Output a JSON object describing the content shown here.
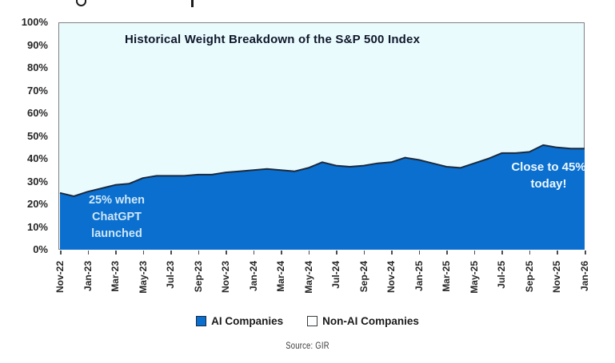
{
  "chart_data": {
    "type": "area",
    "title": "Historical Weight Breakdown of the S&P 500 Index",
    "stacked_to_100": true,
    "grid": false,
    "legend_position": "bottom",
    "ylim": [
      0,
      100
    ],
    "y_ticks": [
      "100%",
      "90%",
      "80%",
      "70%",
      "60%",
      "50%",
      "40%",
      "30%",
      "20%",
      "10%",
      "0%"
    ],
    "x_tick_labels": [
      "Nov-22",
      "Jan-23",
      "Mar-23",
      "May-23",
      "Jul-23",
      "Sep-23",
      "Nov-23",
      "Jan-24",
      "Mar-24",
      "May-24",
      "Jul-24",
      "Sep-24",
      "Nov-24",
      "Jan-25",
      "Mar-25",
      "May-25",
      "Jul-25",
      "Sep-25",
      "Nov-25",
      "Jan-26"
    ],
    "x": [
      "Nov-22",
      "Dec-22",
      "Jan-23",
      "Feb-23",
      "Mar-23",
      "Apr-23",
      "May-23",
      "Jun-23",
      "Jul-23",
      "Aug-23",
      "Sep-23",
      "Oct-23",
      "Nov-23",
      "Dec-23",
      "Jan-24",
      "Feb-24",
      "Mar-24",
      "Apr-24",
      "May-24",
      "Jun-24",
      "Jul-24",
      "Aug-24",
      "Sep-24",
      "Oct-24",
      "Nov-24",
      "Dec-24",
      "Jan-25",
      "Feb-25",
      "Mar-25",
      "Apr-25",
      "May-25",
      "Jun-25",
      "Jul-25",
      "Aug-25",
      "Sep-25",
      "Oct-25",
      "Nov-25",
      "Dec-25",
      "Jan-26"
    ],
    "series": [
      {
        "name": "AI Companies",
        "unit": "% of S&P 500 weight",
        "values": [
          25,
          23.5,
          25.5,
          27,
          28.5,
          29,
          31.5,
          32.5,
          32.5,
          32.5,
          33,
          33,
          34,
          34.5,
          35,
          35.5,
          35,
          34.5,
          36,
          38.5,
          37,
          36.5,
          37,
          38,
          38.5,
          40.5,
          39.5,
          38,
          36.5,
          36,
          38,
          40,
          42.5,
          42.5,
          43,
          46,
          45,
          44.5,
          44.5
        ]
      },
      {
        "name": "Non-AI Companies",
        "values": "complement-to-100"
      }
    ]
  },
  "annotations": [
    {
      "lines": [
        "25% when",
        "ChatGPT",
        "launched"
      ]
    },
    {
      "lines": [
        "Close to 45%",
        "today!"
      ]
    }
  ],
  "legend": {
    "items": [
      {
        "label": "AI Companies",
        "swatch": "filled-blue-square"
      },
      {
        "label": "Non-AI Companies",
        "swatch": "empty-white-square"
      }
    ]
  },
  "source": "Source: GIR",
  "colors": {
    "ai_fill": "#0a6fce",
    "non_ai_fill": "#eafbfe",
    "line_color": "#1b2a3e",
    "plot_border": "#7f7f7f",
    "annotation_left_text": "#cfe7f9",
    "annotation_right_text": "#eef8ff",
    "title_text": "#10182b",
    "axis_text": "#262626"
  }
}
